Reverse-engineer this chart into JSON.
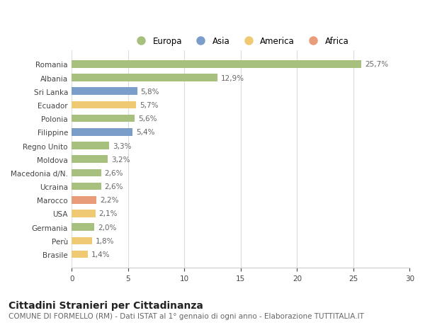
{
  "countries": [
    "Romania",
    "Albania",
    "Sri Lanka",
    "Ecuador",
    "Polonia",
    "Filippine",
    "Regno Unito",
    "Moldova",
    "Macedonia d/N.",
    "Ucraina",
    "Marocco",
    "USA",
    "Germania",
    "Perù",
    "Brasile"
  ],
  "values": [
    25.7,
    12.9,
    5.8,
    5.7,
    5.6,
    5.4,
    3.3,
    3.2,
    2.6,
    2.6,
    2.2,
    2.1,
    2.0,
    1.8,
    1.4
  ],
  "labels": [
    "25,7%",
    "12,9%",
    "5,8%",
    "5,7%",
    "5,6%",
    "5,4%",
    "3,3%",
    "3,2%",
    "2,6%",
    "2,6%",
    "2,2%",
    "2,1%",
    "2,0%",
    "1,8%",
    "1,4%"
  ],
  "continents": [
    "Europa",
    "Europa",
    "Asia",
    "America",
    "Europa",
    "Asia",
    "Europa",
    "Europa",
    "Europa",
    "Europa",
    "Africa",
    "America",
    "Europa",
    "America",
    "America"
  ],
  "colors": {
    "Europa": "#a8c07e",
    "Asia": "#7b9dc9",
    "America": "#f0ca72",
    "Africa": "#e89c7a"
  },
  "legend_labels": [
    "Europa",
    "Asia",
    "America",
    "Africa"
  ],
  "legend_colors": [
    "#a8c07e",
    "#7b9dc9",
    "#f0ca72",
    "#e89c7a"
  ],
  "title": "Cittadini Stranieri per Cittadinanza",
  "subtitle": "COMUNE DI FORMELLO (RM) - Dati ISTAT al 1° gennaio di ogni anno - Elaborazione TUTTITALIA.IT",
  "xlim": [
    0,
    30
  ],
  "xticks": [
    0,
    5,
    10,
    15,
    20,
    25,
    30
  ],
  "plot_bg": "#ffffff",
  "fig_bg": "#ffffff",
  "grid_color": "#dddddd",
  "bar_height": 0.55,
  "label_fontsize": 7.5,
  "tick_fontsize": 7.5,
  "title_fontsize": 10,
  "subtitle_fontsize": 7.5
}
